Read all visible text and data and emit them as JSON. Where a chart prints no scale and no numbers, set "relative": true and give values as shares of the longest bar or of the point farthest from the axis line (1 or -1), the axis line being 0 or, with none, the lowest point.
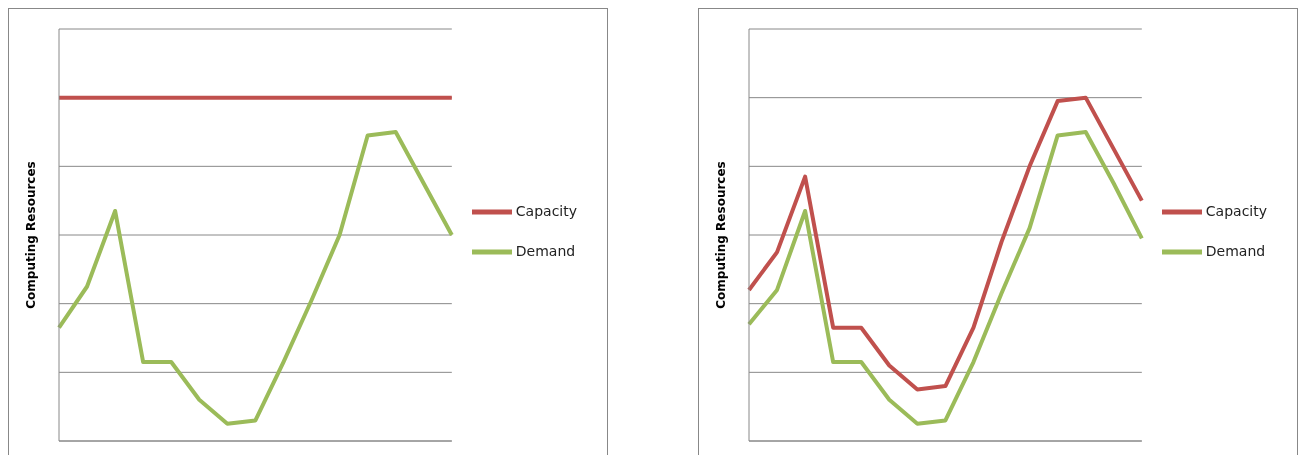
{
  "chart_data": [
    {
      "type": "line",
      "relative": true,
      "ylabel": "Computing Resources",
      "categories": [
        null,
        null,
        null,
        null,
        null,
        null,
        null,
        null,
        null,
        null,
        null,
        null,
        null,
        null,
        null
      ],
      "grid": "y",
      "legend": "right",
      "series": [
        {
          "name": "Capacity",
          "color": "#c0504d",
          "values": [
            1,
            1,
            1,
            1,
            1,
            1,
            1,
            1,
            1,
            1,
            1,
            1,
            1,
            1,
            1
          ]
        },
        {
          "name": "Demand",
          "color": "#9bbb59",
          "values": [
            0.33,
            0.45,
            0.67,
            0.23,
            0.23,
            0.12,
            0.05,
            0.06,
            0.23,
            0.41,
            0.6,
            0.89,
            0.9,
            0.75,
            0.6
          ]
        }
      ]
    },
    {
      "type": "line",
      "relative": true,
      "ylabel": "Computing Resources",
      "categories": [
        null,
        null,
        null,
        null,
        null,
        null,
        null,
        null,
        null,
        null,
        null,
        null,
        null,
        null,
        null
      ],
      "grid": "y",
      "legend": "right",
      "series": [
        {
          "name": "Capacity",
          "color": "#c0504d",
          "values": [
            0.44,
            0.55,
            0.77,
            0.33,
            0.33,
            0.22,
            0.15,
            0.16,
            0.33,
            0.58,
            0.8,
            0.99,
            1,
            0.85,
            0.7
          ]
        },
        {
          "name": "Demand",
          "color": "#9bbb59",
          "values": [
            0.34,
            0.44,
            0.67,
            0.23,
            0.23,
            0.12,
            0.05,
            0.06,
            0.23,
            0.43,
            0.62,
            0.89,
            0.9,
            0.75,
            0.59
          ]
        }
      ]
    }
  ]
}
